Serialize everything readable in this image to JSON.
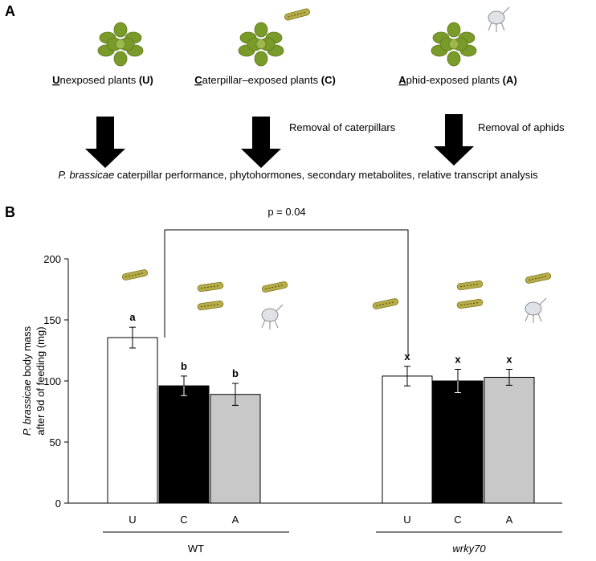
{
  "panel_a": {
    "label": "A",
    "plants": [
      {
        "initial": "U",
        "rest": "nexposed plants ",
        "code": "(U)"
      },
      {
        "initial": "C",
        "rest": "aterpillar–exposed plants ",
        "code": "(C)"
      },
      {
        "initial": "A",
        "rest": "phid-exposed plants ",
        "code": "(A)"
      }
    ],
    "removals": [
      "Removal of caterpillars",
      "Removal of aphids"
    ],
    "outcome": {
      "species": "P. brassicae",
      "rest": " caterpillar performance, phytohormones, secondary metabolites, relative transcript analysis"
    }
  },
  "panel_b_label": "B",
  "chart_data": {
    "type": "bar",
    "ylabel": [
      "P. brassicae",
      " body mass",
      "after 9d of feeding (mg)"
    ],
    "categories": [
      "U",
      "C",
      "A",
      "U",
      "C",
      "A"
    ],
    "groups": [
      {
        "name": "WT",
        "italic": false
      },
      {
        "name": "wrky70",
        "italic": true
      }
    ],
    "values": [
      135.5,
      96,
      89,
      104,
      100,
      103
    ],
    "errors": [
      8.5,
      8,
      9,
      8,
      9.5,
      6.5
    ],
    "colors": [
      "#ffffff",
      "#000000",
      "#c8c8c8",
      "#ffffff",
      "#000000",
      "#c8c8c8"
    ],
    "letters": [
      "a",
      "b",
      "b",
      "x",
      "x",
      "x"
    ],
    "p_annotation": "p = 0.04",
    "ylim": [
      0,
      200
    ],
    "yticks": [
      0,
      50,
      100,
      150,
      200
    ]
  }
}
